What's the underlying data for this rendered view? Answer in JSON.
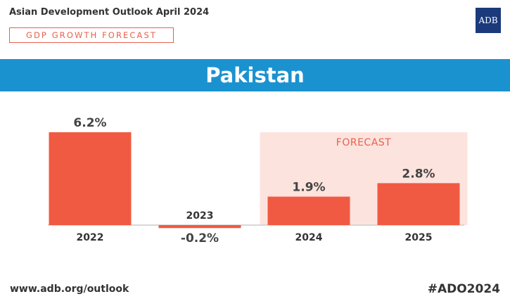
{
  "header": {
    "report_title": "Asian Development Outlook April 2024",
    "section_label": "GDP GROWTH FORECAST",
    "logo_text": "ADB"
  },
  "banner": {
    "country": "Pakistan"
  },
  "chart_data": {
    "type": "bar",
    "categories": [
      "2022",
      "2023",
      "2024",
      "2025"
    ],
    "values": [
      6.2,
      -0.2,
      1.9,
      2.8
    ],
    "value_labels": [
      "6.2%",
      "-0.2%",
      "1.9%",
      "2.8%"
    ],
    "forecast_label": "FORECAST",
    "forecast_categories": [
      "2024",
      "2025"
    ],
    "bar_color": "#f15a42",
    "forecast_bg_color": "#fde3de",
    "forecast_text_color": "#e8604c",
    "baseline_color": "#cccccc"
  },
  "footer": {
    "url": "www.adb.org/outlook",
    "hashtag": "#ADO2024"
  }
}
